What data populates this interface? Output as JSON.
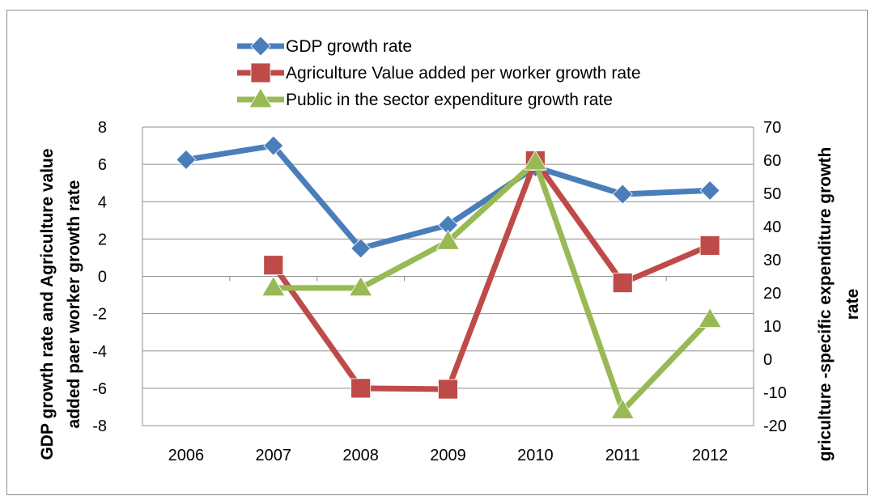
{
  "chart_data": {
    "type": "line",
    "categories": [
      "2006",
      "2007",
      "2008",
      "2009",
      "2010",
      "2011",
      "2012"
    ],
    "y_left": {
      "label_lines": [
        "GDP growth rate and Agriculture value",
        "added paer worker growth rate"
      ],
      "range": [
        -8,
        8
      ],
      "ticks": [
        "8",
        "6",
        "4",
        "2",
        "0",
        "-2",
        "-4",
        "-6",
        "-8"
      ]
    },
    "y_right": {
      "label_lines": [
        "griculture -specific expenditure growth",
        "rate"
      ],
      "range": [
        -20,
        70
      ],
      "ticks": [
        "70",
        "60",
        "50",
        "40",
        "30",
        "20",
        "10",
        "0",
        "-10",
        "-20"
      ]
    },
    "series": [
      {
        "name": "GDP growth rate",
        "axis": "left",
        "marker": "diamond",
        "color": "#4a7ebb",
        "values": [
          6.25,
          7.0,
          1.5,
          2.75,
          5.85,
          4.4,
          4.6
        ]
      },
      {
        "name": "Agriculture Value added per worker growth rate",
        "axis": "left",
        "marker": "square",
        "color": "#be4b48",
        "values": [
          null,
          0.6,
          -6.0,
          -6.05,
          6.2,
          -0.35,
          1.65
        ]
      },
      {
        "name": "Public in the sector expenditure growth rate",
        "axis": "right",
        "marker": "triangle",
        "color": "#98b954",
        "values": [
          null,
          21.5,
          21.5,
          35.5,
          59.5,
          -15.5,
          12.0
        ]
      }
    ],
    "legend_position": "top",
    "grid": "horizontal"
  }
}
